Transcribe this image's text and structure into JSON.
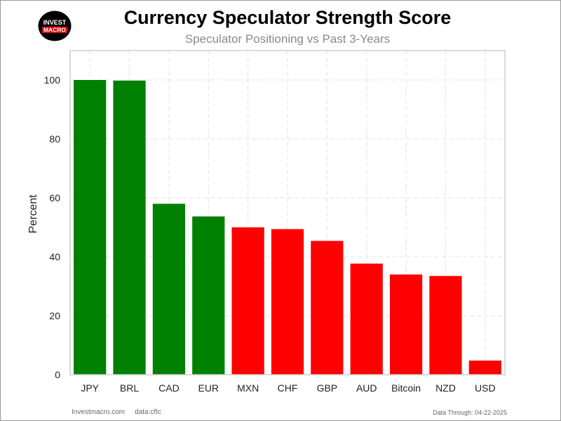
{
  "header": {
    "title": "Currency Speculator Strength Score",
    "subtitle": "Speculator Positioning vs Past 3-Years"
  },
  "logo": {
    "line1": "INVEST",
    "line2": "MACRO",
    "bg_color": "#000000",
    "accent_color": "#e00000"
  },
  "footer": {
    "site": "Investmacro.com",
    "source": "data:cftc",
    "data_through": "Data Through: 04-22-2025"
  },
  "colors": {
    "positive": "#008000",
    "negative": "#ff0000"
  },
  "chart_data": {
    "type": "bar",
    "title": "Currency Speculator Strength Score",
    "subtitle": "Speculator Positioning vs Past 3-Years",
    "xlabel": "",
    "ylabel": "Percent",
    "ylim": [
      0,
      110
    ],
    "yticks": [
      0,
      20,
      40,
      60,
      80,
      100
    ],
    "grid": true,
    "categories": [
      "JPY",
      "BRL",
      "CAD",
      "EUR",
      "MXN",
      "CHF",
      "GBP",
      "AUD",
      "Bitcoin",
      "NZD",
      "USD"
    ],
    "values": [
      100,
      99.8,
      58,
      53.7,
      50,
      49.4,
      45.4,
      37.7,
      34,
      33.5,
      4.8
    ],
    "bar_colors": [
      "#008000",
      "#008000",
      "#008000",
      "#008000",
      "#ff0000",
      "#ff0000",
      "#ff0000",
      "#ff0000",
      "#ff0000",
      "#ff0000",
      "#ff0000"
    ]
  }
}
